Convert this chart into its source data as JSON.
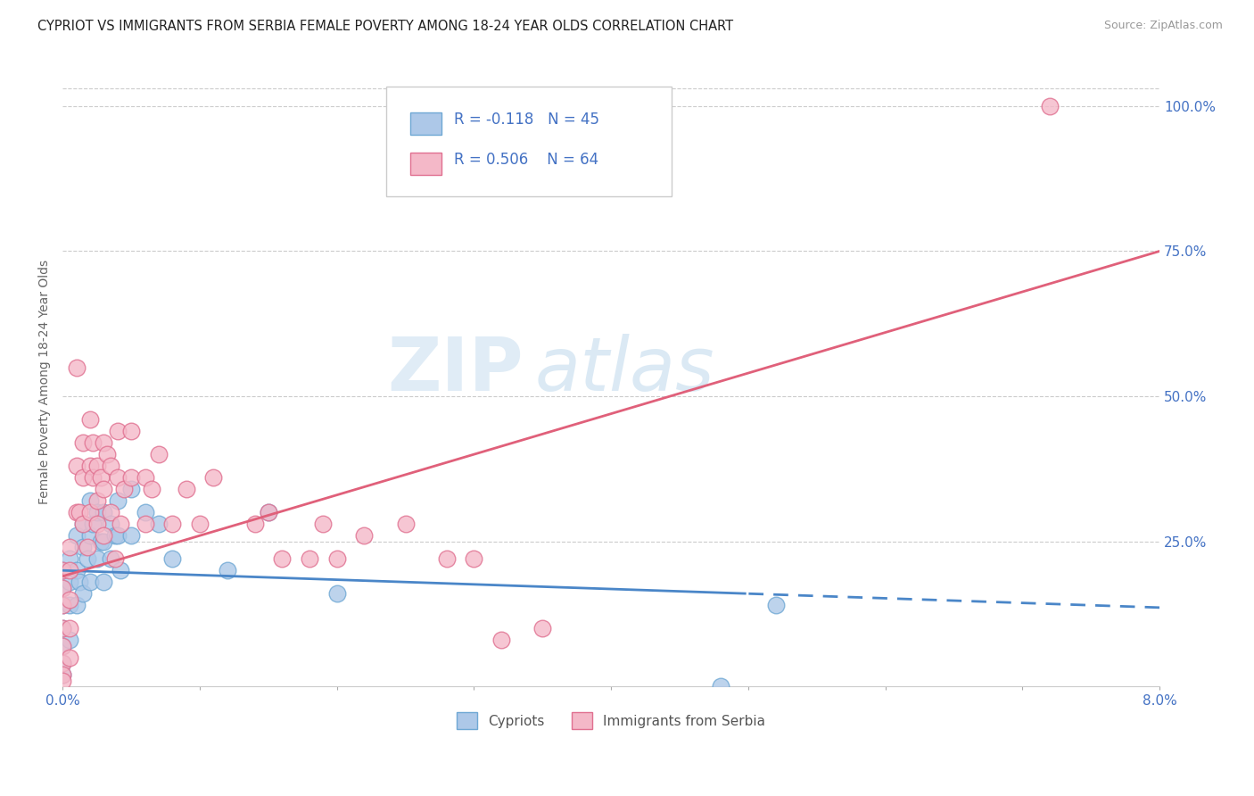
{
  "title": "CYPRIOT VS IMMIGRANTS FROM SERBIA FEMALE POVERTY AMONG 18-24 YEAR OLDS CORRELATION CHART",
  "source": "Source: ZipAtlas.com",
  "ylabel": "Female Poverty Among 18-24 Year Olds",
  "xmin": 0.0,
  "xmax": 8.0,
  "ymin": 0.0,
  "ymax": 105.0,
  "series1_name": "Cypriots",
  "series1_color": "#adc8e8",
  "series1_edge_color": "#6fa8d4",
  "series1_R": -0.118,
  "series1_N": 45,
  "series1_line_color": "#4a86c8",
  "series2_name": "Immigrants from Serbia",
  "series2_color": "#f4b8c8",
  "series2_edge_color": "#e07090",
  "series2_R": 0.506,
  "series2_N": 64,
  "series2_line_color": "#e0607a",
  "legend_R_color": "#4472c4",
  "watermark_zip": "ZIP",
  "watermark_atlas": "atlas",
  "series1_x": [
    0.0,
    0.0,
    0.0,
    0.0,
    0.0,
    0.0,
    0.0,
    0.05,
    0.05,
    0.05,
    0.05,
    0.1,
    0.1,
    0.1,
    0.12,
    0.15,
    0.15,
    0.15,
    0.18,
    0.2,
    0.2,
    0.2,
    0.22,
    0.25,
    0.25,
    0.28,
    0.3,
    0.3,
    0.3,
    0.35,
    0.35,
    0.38,
    0.4,
    0.4,
    0.42,
    0.5,
    0.5,
    0.6,
    0.7,
    0.8,
    1.2,
    1.5,
    2.0,
    4.8,
    5.2
  ],
  "series1_y": [
    20,
    17,
    14,
    10,
    7,
    4,
    2,
    22,
    18,
    14,
    8,
    26,
    20,
    14,
    18,
    28,
    24,
    16,
    22,
    32,
    26,
    18,
    28,
    22,
    30,
    25,
    30,
    25,
    18,
    28,
    22,
    26,
    32,
    26,
    20,
    34,
    26,
    30,
    28,
    22,
    20,
    30,
    16,
    0,
    14
  ],
  "series2_x": [
    0.0,
    0.0,
    0.0,
    0.0,
    0.0,
    0.0,
    0.0,
    0.0,
    0.05,
    0.05,
    0.05,
    0.05,
    0.05,
    0.1,
    0.1,
    0.1,
    0.12,
    0.15,
    0.15,
    0.15,
    0.18,
    0.2,
    0.2,
    0.2,
    0.22,
    0.22,
    0.25,
    0.25,
    0.25,
    0.28,
    0.3,
    0.3,
    0.3,
    0.32,
    0.35,
    0.35,
    0.38,
    0.4,
    0.4,
    0.42,
    0.45,
    0.5,
    0.5,
    0.6,
    0.6,
    0.65,
    0.7,
    0.8,
    0.9,
    1.0,
    1.1,
    1.4,
    1.5,
    1.6,
    1.8,
    1.9,
    2.0,
    2.2,
    2.5,
    2.8,
    3.0,
    3.2,
    3.5,
    7.2
  ],
  "series2_y": [
    20,
    17,
    14,
    10,
    7,
    4,
    2,
    1,
    24,
    20,
    15,
    10,
    5,
    55,
    38,
    30,
    30,
    42,
    36,
    28,
    24,
    46,
    38,
    30,
    42,
    36,
    28,
    38,
    32,
    36,
    42,
    34,
    26,
    40,
    38,
    30,
    22,
    44,
    36,
    28,
    34,
    44,
    36,
    36,
    28,
    34,
    40,
    28,
    34,
    28,
    36,
    28,
    30,
    22,
    22,
    28,
    22,
    26,
    28,
    22,
    22,
    8,
    10,
    100
  ]
}
